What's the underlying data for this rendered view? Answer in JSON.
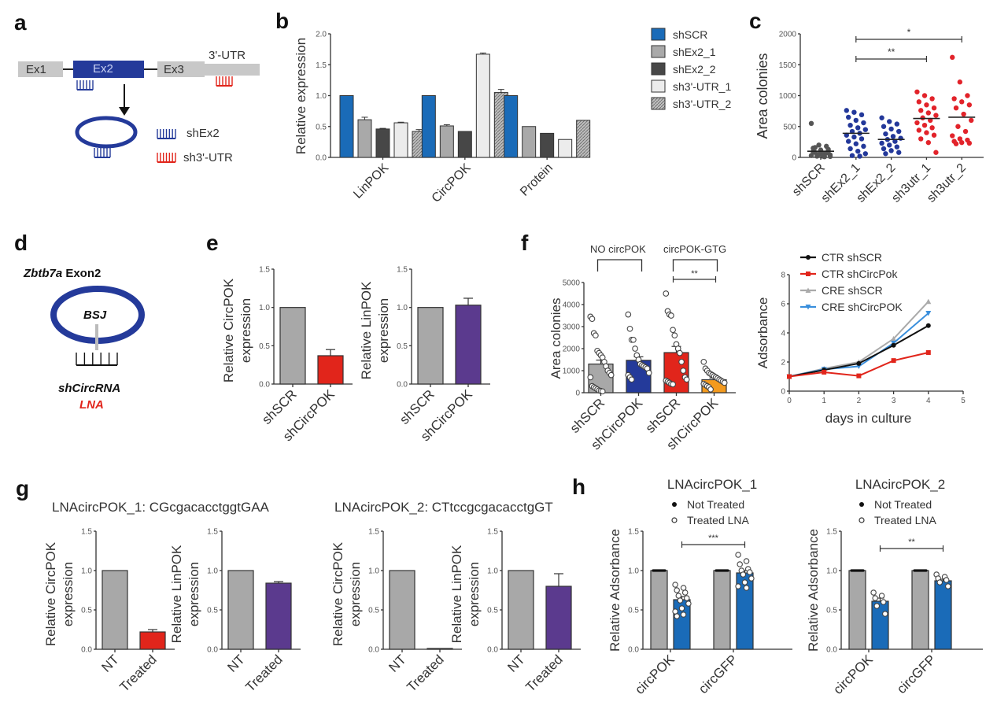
{
  "panels": {
    "a": {
      "label": "a",
      "exons": [
        "Ex1",
        "Ex2",
        "Ex3"
      ],
      "utr_label": "3'-UTR",
      "legend": [
        "shEx2",
        "sh3'-UTR"
      ]
    },
    "d": {
      "label": "d",
      "title_italic": "Zbtb7a",
      "title_rest": " Exon2",
      "bsj": "BSJ",
      "sh": "shCircRNA",
      "lna": "LNA"
    }
  },
  "colors": {
    "blue": "#1a6bb8",
    "navy": "#243a9a",
    "red": "#e1251b",
    "purple": "#5b3a8e",
    "gray": "#a8a8a8",
    "dark": "#4a4a4a",
    "light": "#ececec",
    "orange": "#f39a1e",
    "scatter_blue": "#23389a",
    "scatter_red": "#e2232a"
  },
  "chart_data": [
    {
      "id": "b",
      "label": "b",
      "type": "bar",
      "ylabel": "Relative expression",
      "ylim": [
        0,
        2.0
      ],
      "yticks": [
        "0.0",
        "0.5",
        "1.0",
        "1.5",
        "2.0"
      ],
      "categories": [
        "LinPOK",
        "CircPOK",
        "Protein"
      ],
      "series": [
        {
          "name": "shSCR",
          "values": [
            1.0,
            1.0,
            1.0
          ],
          "err": [
            0,
            0,
            0
          ]
        },
        {
          "name": "shEx2_1",
          "values": [
            0.61,
            0.51,
            0.5
          ],
          "err": [
            0.04,
            0.02,
            0
          ]
        },
        {
          "name": "shEx2_2",
          "values": [
            0.46,
            0.42,
            0.39
          ],
          "err": [
            0.01,
            0,
            0
          ]
        },
        {
          "name": "sh3'-UTR_1",
          "values": [
            0.56,
            1.67,
            0.29
          ],
          "err": [
            0.01,
            0.02,
            0
          ]
        },
        {
          "name": "sh3'-UTR_2",
          "values": [
            0.42,
            1.05,
            0.6
          ],
          "err": [
            0.03,
            0.05,
            0
          ]
        }
      ],
      "legend": "right"
    },
    {
      "id": "c",
      "label": "c",
      "type": "scatter",
      "ylabel": "Area colonies",
      "ylim": [
        0,
        2000
      ],
      "yticks": [
        "0",
        "500",
        "1000",
        "1500",
        "2000"
      ],
      "categories": [
        "shSCR",
        "shEx2_1",
        "shEx2_2",
        "sh3utr_1",
        "sh3utr_2"
      ],
      "means": [
        100,
        390,
        290,
        630,
        650
      ],
      "points": [
        [
          550,
          200,
          180,
          150,
          120,
          100,
          80,
          60,
          40,
          20,
          10,
          30,
          50,
          70,
          90,
          110,
          130,
          160,
          20,
          15
        ],
        [
          760,
          730,
          690,
          650,
          600,
          560,
          520,
          480,
          450,
          420,
          390,
          360,
          330,
          300,
          260,
          220,
          180,
          140,
          100,
          60,
          30,
          20
        ],
        [
          640,
          580,
          540,
          500,
          460,
          420,
          380,
          340,
          310,
          290,
          260,
          230,
          200,
          170,
          140,
          110,
          80,
          60
        ],
        [
          1060,
          1000,
          950,
          900,
          850,
          800,
          760,
          720,
          680,
          640,
          600,
          560,
          520,
          480,
          440,
          400,
          360,
          300,
          240,
          80
        ],
        [
          1620,
          1220,
          1000,
          950,
          900,
          850,
          800,
          700,
          600,
          500,
          420,
          350,
          300,
          280,
          260,
          240,
          230,
          220
        ]
      ],
      "significance": [
        {
          "from": 1,
          "to": 4,
          "label": "*"
        },
        {
          "from": 1,
          "to": 3,
          "label": "**"
        }
      ]
    },
    {
      "id": "e1",
      "label": "e",
      "type": "bar",
      "ylabel": [
        "Relative CircPOK",
        "expression"
      ],
      "ylim": [
        0,
        1.5
      ],
      "yticks": [
        "0.0",
        "0.5",
        "1.0",
        "1.5"
      ],
      "categories": [
        "shSCR",
        "shCircPOK"
      ],
      "values": [
        1.0,
        0.37
      ],
      "err": [
        0,
        0.08
      ],
      "colors": [
        "gray",
        "red"
      ]
    },
    {
      "id": "e2",
      "type": "bar",
      "ylabel": [
        "Relative LinPOK",
        "expression"
      ],
      "ylim": [
        0,
        1.5
      ],
      "yticks": [
        "0.0",
        "0.5",
        "1.0",
        "1.5"
      ],
      "categories": [
        "shSCR",
        "shCircPOK"
      ],
      "values": [
        1.0,
        1.03
      ],
      "err": [
        0,
        0.09
      ],
      "colors": [
        "gray",
        "purple"
      ]
    },
    {
      "id": "f1",
      "label": "f",
      "type": "bar",
      "ylabel": "Area colonies",
      "ylim": [
        0,
        5000
      ],
      "yticks": [
        "0",
        "1000",
        "2000",
        "3000",
        "4000",
        "5000"
      ],
      "group_labels": [
        "NO circPOK",
        "circPOK-GTG"
      ],
      "categories": [
        "shSCR",
        "shCircPOK",
        "shSCR",
        "shCircPOK"
      ],
      "values": [
        1300,
        1470,
        1820,
        590
      ],
      "err": [
        180,
        160,
        280,
        80
      ],
      "colors": [
        "gray",
        "navy",
        "red",
        "orange"
      ],
      "points": [
        [
          3450,
          3350,
          2700,
          2600,
          1900,
          1800,
          1700,
          1600,
          1400,
          1200,
          1000,
          900,
          800,
          700,
          300,
          250,
          200,
          150,
          100,
          80,
          60
        ],
        [
          3550,
          2900,
          2400,
          2400,
          2000,
          1700,
          1500,
          1300,
          1250,
          1200,
          1150,
          1100,
          900,
          800,
          700,
          600
        ],
        [
          4500,
          3700,
          3550,
          3500,
          2850,
          2600,
          2200,
          2000,
          1800,
          1400,
          1000,
          700,
          600,
          550,
          500,
          450,
          400,
          380
        ],
        [
          1400,
          1100,
          1000,
          900,
          850,
          800,
          750,
          700,
          650,
          600,
          550,
          500,
          450,
          400,
          350,
          300,
          250,
          150
        ]
      ],
      "significance": [
        {
          "from": 2,
          "to": 3,
          "label": "**"
        }
      ]
    },
    {
      "id": "f2",
      "type": "line",
      "xlabel": "days in culture",
      "ylabel": "Adsorbance",
      "xlim": [
        0,
        5
      ],
      "ylim": [
        0,
        8
      ],
      "xticks": [
        "0",
        "1",
        "2",
        "3",
        "4",
        "5"
      ],
      "yticks": [
        "0",
        "2",
        "4",
        "6",
        "8"
      ],
      "x": [
        0,
        1,
        2,
        3,
        4
      ],
      "series": [
        {
          "name": "CTR shSCR",
          "values": [
            1.0,
            1.45,
            1.9,
            3.15,
            4.5
          ],
          "color": "#111111",
          "marker": "circle"
        },
        {
          "name": "CTR shCircPok",
          "values": [
            1.0,
            1.3,
            1.05,
            2.1,
            2.65
          ],
          "color": "#e1251b",
          "marker": "square"
        },
        {
          "name": "CRE shSCR",
          "values": [
            1.0,
            1.55,
            2.0,
            3.6,
            6.15
          ],
          "color": "#aaaaaa",
          "marker": "triangle"
        },
        {
          "name": "CRE shCircPOK",
          "values": [
            1.0,
            1.5,
            1.7,
            3.3,
            5.35
          ],
          "color": "#3a8fdc",
          "marker": "triangle-down"
        }
      ],
      "legend": "top-left"
    },
    {
      "id": "g1",
      "label": "g",
      "type": "bar",
      "title": "LNAcircPOK_1: CGcgacacctggtGAA",
      "ylabel": [
        "Relative CircPOK",
        "expression"
      ],
      "ylim": [
        0,
        1.5
      ],
      "yticks": [
        "0.0",
        "0.5",
        "1.0",
        "1.5"
      ],
      "categories": [
        "NT",
        "Treated"
      ],
      "values": [
        1.0,
        0.22
      ],
      "err": [
        0,
        0.03
      ],
      "colors": [
        "gray",
        "red"
      ]
    },
    {
      "id": "g2",
      "type": "bar",
      "ylabel": [
        "Relative LinPOK",
        "expression"
      ],
      "ylim": [
        0,
        1.5
      ],
      "yticks": [
        "0.0",
        "0.5",
        "1.0",
        "1.5"
      ],
      "categories": [
        "NT",
        "Treated"
      ],
      "values": [
        1.0,
        0.84
      ],
      "err": [
        0,
        0.02
      ],
      "colors": [
        "gray",
        "purple"
      ]
    },
    {
      "id": "g3",
      "type": "bar",
      "title": "LNAcircPOK_2: CTtccgcgacacctgGT",
      "ylabel": [
        "Relative CircPOK",
        "expression"
      ],
      "ylim": [
        0,
        1.5
      ],
      "yticks": [
        "0.0",
        "0.5",
        "1.0",
        "1.5"
      ],
      "categories": [
        "NT",
        "Treated"
      ],
      "values": [
        1.0,
        0.01
      ],
      "err": [
        0,
        0
      ],
      "colors": [
        "gray",
        "red"
      ]
    },
    {
      "id": "g4",
      "type": "bar",
      "ylabel": [
        "Relative LinPOK",
        "expression"
      ],
      "ylim": [
        0,
        1.5
      ],
      "yticks": [
        "0.0",
        "0.5",
        "1.0",
        "1.5"
      ],
      "categories": [
        "NT",
        "Treated"
      ],
      "values": [
        1.0,
        0.8
      ],
      "err": [
        0,
        0.16
      ],
      "colors": [
        "gray",
        "purple"
      ]
    },
    {
      "id": "h1",
      "label": "h",
      "type": "bar",
      "title": "LNAcircPOK_1",
      "ylabel": "Relative Adsorbance",
      "ylim": [
        0,
        1.5
      ],
      "yticks": [
        "0.0",
        "0.5",
        "1.0",
        "1.5"
      ],
      "legend_items": [
        "Not Treated",
        "Treated LNA"
      ],
      "categories": [
        "circPOK",
        "circGFP"
      ],
      "series": [
        {
          "name": "Not Treated",
          "values": [
            1.0,
            1.0
          ],
          "color": "gray"
        },
        {
          "name": "Treated LNA",
          "values": [
            0.63,
            0.97
          ],
          "err": [
            0.04,
            0.03
          ],
          "color": "blue",
          "points": [
            [
              0.82,
              0.78,
              0.75,
              0.72,
              0.68,
              0.65,
              0.62,
              0.58,
              0.52,
              0.48,
              0.44,
              0.42
            ],
            [
              1.2,
              1.12,
              1.08,
              1.02,
              1.0,
              0.98,
              0.95,
              0.9,
              0.85,
              0.8,
              0.78
            ]
          ]
        }
      ],
      "significance": [
        {
          "label": "***"
        }
      ]
    },
    {
      "id": "h2",
      "type": "bar",
      "title": "LNAcircPOK_2",
      "ylabel": "Relative Adsorbance",
      "ylim": [
        0,
        1.5
      ],
      "yticks": [
        "0.0",
        "0.5",
        "1.0",
        "1.5"
      ],
      "legend_items": [
        "Not Treated",
        "Treated LNA"
      ],
      "categories": [
        "circPOK",
        "circGFP"
      ],
      "series": [
        {
          "name": "Not Treated",
          "values": [
            1.0,
            1.0
          ],
          "color": "gray"
        },
        {
          "name": "Treated LNA",
          "values": [
            0.61,
            0.87
          ],
          "err": [
            0.04,
            0.02
          ],
          "color": "blue",
          "points": [
            [
              0.72,
              0.68,
              0.65,
              0.6,
              0.55,
              0.45
            ],
            [
              0.95,
              0.92,
              0.9,
              0.88,
              0.85,
              0.8
            ]
          ]
        }
      ],
      "significance": [
        {
          "label": "**"
        }
      ]
    }
  ]
}
